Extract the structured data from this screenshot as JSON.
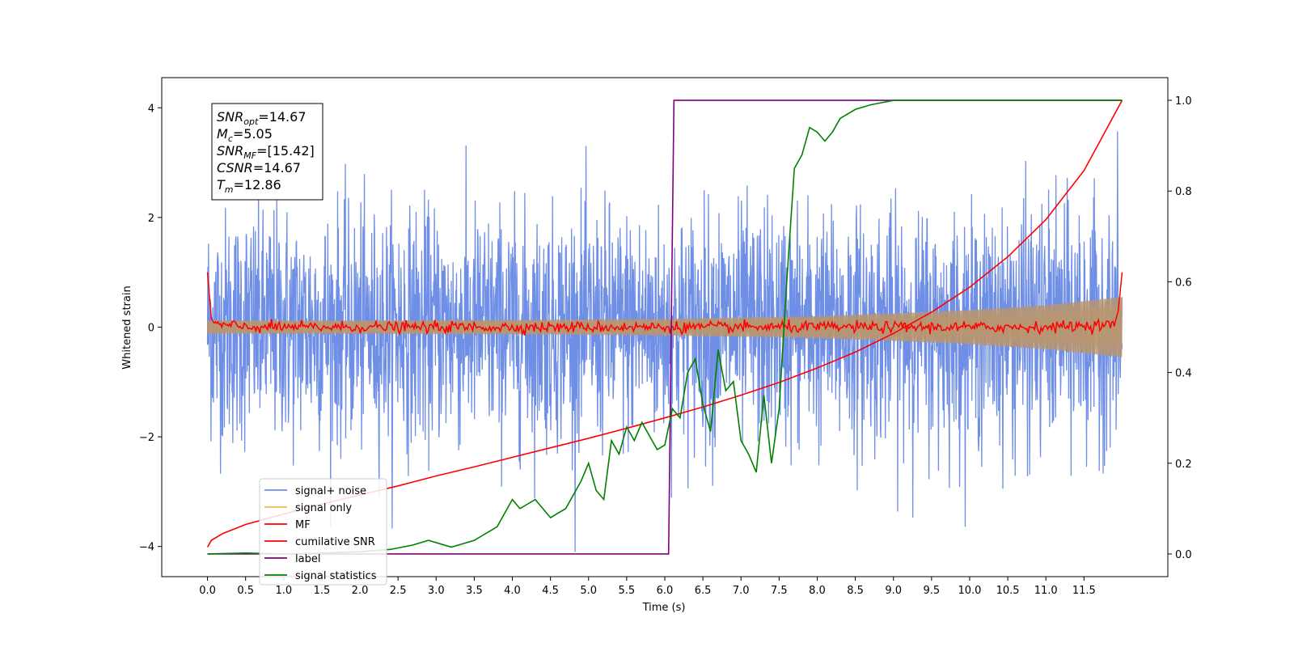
{
  "chart_data": {
    "type": "line",
    "title": "",
    "xlabel": "Time (s)",
    "ylabel": "Whitened strain",
    "xlim": [
      -0.6,
      12.6
    ],
    "ylim": [
      -4.55,
      4.55
    ],
    "y2lim": [
      -0.05,
      1.05
    ],
    "x_ticks": [
      0.0,
      0.5,
      1.0,
      1.5,
      2.0,
      2.5,
      3.0,
      3.5,
      4.0,
      4.5,
      5.0,
      5.5,
      6.0,
      6.5,
      7.0,
      7.5,
      8.0,
      8.5,
      9.0,
      9.5,
      10.0,
      10.5,
      11.0,
      11.5
    ],
    "x_tick_labels": [
      "0.0",
      "0.5",
      "1.0",
      "1.5",
      "2.0",
      "2.5",
      "3.0",
      "3.5",
      "4.0",
      "4.5",
      "5.0",
      "5.5",
      "6.0",
      "6.5",
      "7.0",
      "7.5",
      "8.0",
      "8.5",
      "9.0",
      "9.5",
      "10.0",
      "10.5",
      "11.0",
      "11.5"
    ],
    "y_ticks": [
      -4,
      -2,
      0,
      2,
      4
    ],
    "y_tick_labels": [
      "−4",
      "−2",
      "0",
      "2",
      "4"
    ],
    "y2_ticks": [
      0.0,
      0.2,
      0.4,
      0.6,
      0.8,
      1.0
    ],
    "y2_tick_labels": [
      "0.0",
      "0.2",
      "0.4",
      "0.6",
      "0.8",
      "1.0"
    ],
    "grid": false,
    "legend_position": "lower-left",
    "colors": {
      "signal_noise": "#6f8fe6",
      "signal_only": "#f5b94e",
      "signal_overlap": "#b8966e",
      "mf": "#ff0000",
      "cumulative_snr": "#ff0000",
      "label": "#800080",
      "signal_statistics": "#008000"
    },
    "series": [
      {
        "name": "signal+ noise",
        "axis": "left",
        "note_kind": "noise",
        "x_range": [
          0.0,
          12.0
        ],
        "amplitude_range": [
          -4.1,
          4.05
        ]
      },
      {
        "name": "signal only",
        "axis": "left",
        "envelope": {
          "x": [
            0.0,
            2.0,
            4.0,
            6.0,
            8.0,
            9.0,
            10.0,
            11.0,
            12.0
          ],
          "amp": [
            0.12,
            0.12,
            0.13,
            0.15,
            0.2,
            0.25,
            0.31,
            0.4,
            0.55
          ]
        }
      },
      {
        "name": "MF",
        "axis": "left",
        "x": [
          0.0,
          0.05,
          0.1,
          0.5,
          1.0,
          2.0,
          3.0,
          4.0,
          5.0,
          6.0,
          7.0,
          8.0,
          9.0,
          10.0,
          11.0,
          11.9,
          11.95,
          12.0
        ],
        "y": [
          1.0,
          0.15,
          0.05,
          0.0,
          0.0,
          0.0,
          0.0,
          0.0,
          0.0,
          0.0,
          0.0,
          0.0,
          0.0,
          0.0,
          0.0,
          0.05,
          0.3,
          1.0
        ]
      },
      {
        "name": "cumilative SNR",
        "axis": "right",
        "x": [
          0.0,
          0.05,
          0.2,
          0.5,
          1.0,
          1.5,
          2.0,
          2.5,
          3.0,
          3.5,
          4.0,
          4.5,
          5.0,
          5.5,
          6.0,
          6.5,
          7.0,
          7.5,
          8.0,
          8.5,
          9.0,
          9.5,
          10.0,
          10.5,
          11.0,
          11.5,
          12.0
        ],
        "y": [
          0.015,
          0.03,
          0.045,
          0.065,
          0.088,
          0.11,
          0.13,
          0.15,
          0.172,
          0.192,
          0.213,
          0.234,
          0.255,
          0.277,
          0.3,
          0.324,
          0.35,
          0.378,
          0.41,
          0.445,
          0.486,
          0.533,
          0.588,
          0.655,
          0.737,
          0.845,
          1.0
        ]
      },
      {
        "name": "label",
        "axis": "right",
        "x": [
          0.0,
          6.05,
          6.12,
          12.0
        ],
        "y": [
          0.0,
          0.0,
          1.0,
          1.0
        ]
      },
      {
        "name": "signal statistics",
        "axis": "right",
        "x": [
          0.0,
          0.5,
          1.0,
          1.5,
          2.0,
          2.4,
          2.7,
          2.9,
          3.0,
          3.2,
          3.5,
          3.8,
          4.0,
          4.1,
          4.2,
          4.3,
          4.4,
          4.5,
          4.7,
          4.9,
          5.0,
          5.1,
          5.2,
          5.3,
          5.4,
          5.5,
          5.6,
          5.7,
          5.8,
          5.9,
          6.0,
          6.1,
          6.2,
          6.3,
          6.4,
          6.5,
          6.6,
          6.7,
          6.8,
          6.9,
          7.0,
          7.1,
          7.2,
          7.3,
          7.4,
          7.5,
          7.6,
          7.7,
          7.8,
          7.9,
          8.0,
          8.1,
          8.2,
          8.3,
          8.5,
          8.7,
          9.0,
          9.5,
          10.0,
          10.5,
          11.0,
          11.5,
          12.0
        ],
        "y": [
          0.0,
          0.002,
          0.0,
          0.002,
          0.005,
          0.01,
          0.02,
          0.03,
          0.025,
          0.015,
          0.03,
          0.06,
          0.12,
          0.1,
          0.11,
          0.12,
          0.1,
          0.08,
          0.1,
          0.16,
          0.2,
          0.14,
          0.12,
          0.25,
          0.22,
          0.28,
          0.25,
          0.29,
          0.26,
          0.23,
          0.24,
          0.32,
          0.3,
          0.4,
          0.43,
          0.33,
          0.27,
          0.45,
          0.36,
          0.38,
          0.25,
          0.22,
          0.18,
          0.35,
          0.2,
          0.32,
          0.6,
          0.85,
          0.88,
          0.94,
          0.93,
          0.91,
          0.93,
          0.96,
          0.98,
          0.99,
          1.0,
          1.0,
          1.0,
          1.0,
          1.0,
          1.0,
          1.0
        ]
      }
    ],
    "annotation": {
      "lines": [
        {
          "name": "SNR",
          "sub": "opt",
          "value": "=14.67"
        },
        {
          "name": "M",
          "sub": "c",
          "value": "=5.05"
        },
        {
          "name": "SNR",
          "sub": "MF",
          "value": "=[15.42]"
        },
        {
          "name": "CSNR",
          "sub": "",
          "value": "=14.67"
        },
        {
          "name": "T",
          "sub": "m",
          "value": "=12.86"
        }
      ]
    }
  }
}
